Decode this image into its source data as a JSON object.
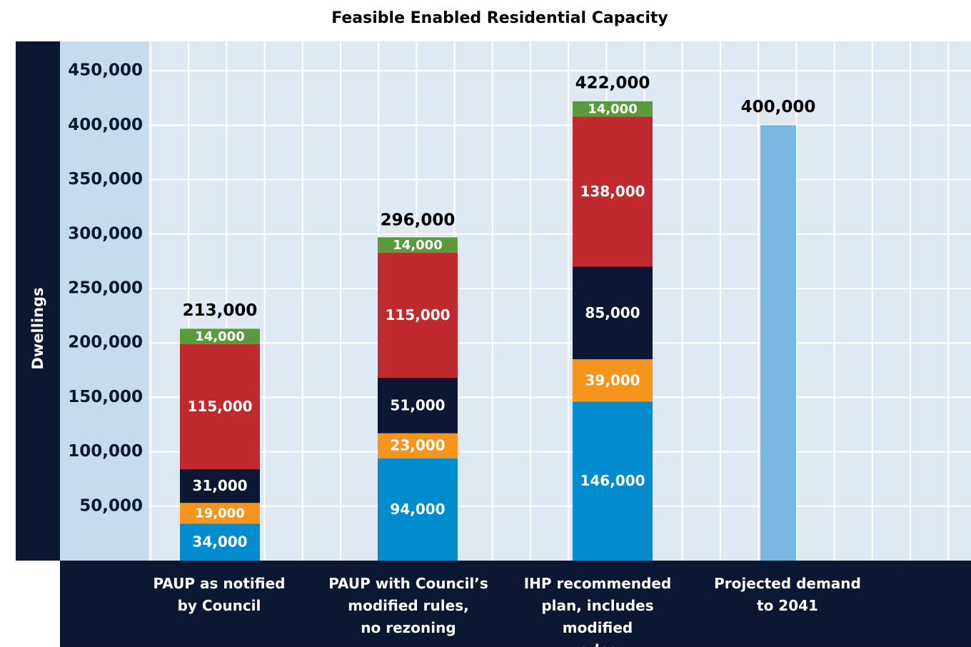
{
  "chart_data": {
    "type": "stacked_bar",
    "title": "Feasible Enabled Residential Capacity",
    "y_label": "Dwellings",
    "categories": [
      "PAUP as notified\nby Council",
      "PAUP with Council’s\nmodified rules,\nno rezoning",
      "IHP recommended\nplan, includes modified\nrules",
      "Projected demand\nto 2041"
    ],
    "series": [
      {
        "color": "#008ccf",
        "values": [
          34000,
          94000,
          146000,
          null
        ],
        "value_labels": [
          "34,000",
          "94,000",
          "146,000",
          null
        ]
      },
      {
        "color": "#f7941d",
        "values": [
          19000,
          23000,
          39000,
          null
        ],
        "value_labels": [
          "19,000",
          "23,000",
          "39,000",
          null
        ]
      },
      {
        "color": "#0b1733",
        "values": [
          31000,
          51000,
          85000,
          null
        ],
        "value_labels": [
          "31,000",
          "51,000",
          "85,000",
          null
        ]
      },
      {
        "color": "#c0292e",
        "values": [
          115000,
          115000,
          138000,
          null
        ],
        "value_labels": [
          "115,000",
          "115,000",
          "138,000",
          null
        ]
      },
      {
        "color": "#5a9a3c",
        "values": [
          14000,
          14000,
          14000,
          null
        ],
        "value_labels": [
          "14,000",
          "14,000",
          "14,000",
          null
        ]
      },
      {
        "color": "#78b7e0",
        "values": [
          null,
          null,
          null,
          400000
        ]
      }
    ],
    "totals": [
      213000,
      296000,
      422000,
      400000
    ],
    "total_labels": [
      "213,000",
      "296,000",
      "422,000",
      "400,000"
    ],
    "ylim": [
      0,
      477000
    ],
    "yticks": [
      {
        "value": 50000,
        "label": "50,000"
      },
      {
        "value": 100000,
        "label": "100,000"
      },
      {
        "value": 150000,
        "label": "150,000"
      },
      {
        "value": 200000,
        "label": "200,000"
      },
      {
        "value": 250000,
        "label": "250,000"
      },
      {
        "value": 300000,
        "label": "300,000"
      },
      {
        "value": 350000,
        "label": "350,000"
      },
      {
        "value": 400000,
        "label": "400,000"
      },
      {
        "value": 450000,
        "label": "450,000"
      }
    ],
    "grid": true
  }
}
